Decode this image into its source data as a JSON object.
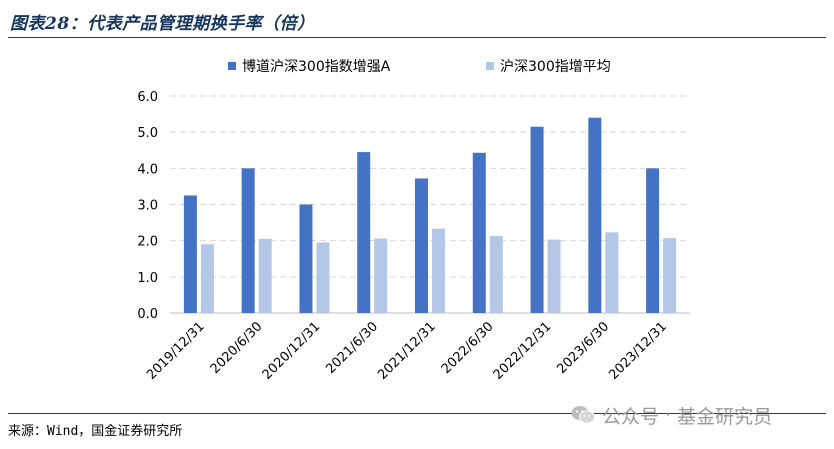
{
  "header": {
    "title": "图表28：代表产品管理期换手率（倍）"
  },
  "footer": {
    "source": "来源：Wind，国金证券研究所",
    "watermark_account": "公众号",
    "watermark_dot": "·",
    "watermark_name": "基金研究员",
    "watermark_icon": "wechat-icon"
  },
  "chart_data": {
    "type": "bar",
    "categories": [
      "2019/12/31",
      "2020/6/30",
      "2020/12/31",
      "2021/6/30",
      "2021/12/31",
      "2022/6/30",
      "2022/12/31",
      "2023/6/30",
      "2023/12/31"
    ],
    "series": [
      {
        "name": "博道沪深300指数增强A",
        "color": "#4472c4",
        "values": [
          3.25,
          4.0,
          3.0,
          4.45,
          3.72,
          4.43,
          5.15,
          5.4,
          4.0
        ]
      },
      {
        "name": "沪深300指增平均",
        "color": "#b4c7e7",
        "values": [
          1.9,
          2.05,
          1.95,
          2.06,
          2.33,
          2.13,
          2.03,
          2.23,
          2.07
        ]
      }
    ],
    "ylim": [
      0,
      6
    ],
    "yticks": [
      "0.0",
      "1.0",
      "2.0",
      "3.0",
      "4.0",
      "5.0",
      "6.0"
    ],
    "grid": true,
    "legend_position": "top"
  }
}
